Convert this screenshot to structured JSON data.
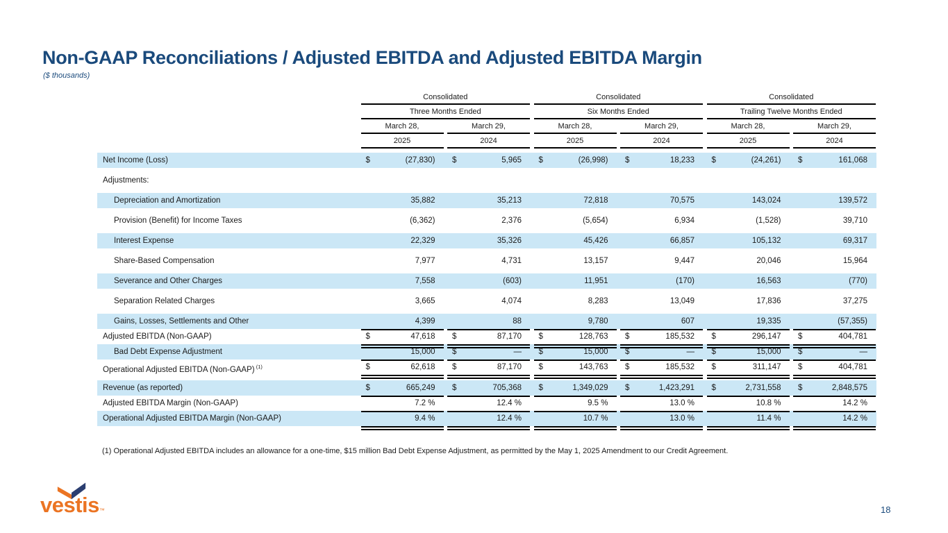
{
  "slide": {
    "title": "Non-GAAP Reconciliations / Adjusted EBITDA and Adjusted EBITDA Margin",
    "subtitle": "($ thousands)",
    "footnote": "(1) Operational Adjusted EBITDA includes an allowance for a one-time, $15 million Bad Debt Expense Adjustment, as permitted by the May 1, 2025 Amendment to our Credit Agreement.",
    "page_number": "18",
    "logo": {
      "wordmark": "vestis",
      "tm": "™"
    }
  },
  "colors": {
    "title_navy": "#1A4A7C",
    "row_highlight_blue": "#CBE7F6",
    "rule_black": "#000000",
    "logo_orange": "#EB7423",
    "logo_navy": "#2B3E70"
  },
  "chart_data": {
    "type": "table",
    "column_groups": [
      {
        "top": "Consolidated",
        "period": "Three Months Ended",
        "columns": [
          {
            "date": "March 28,",
            "year": "2025"
          },
          {
            "date": "March 29,",
            "year": "2024"
          }
        ]
      },
      {
        "top": "Consolidated",
        "period": "Six Months Ended",
        "columns": [
          {
            "date": "March 28,",
            "year": "2025"
          },
          {
            "date": "March 29,",
            "year": "2024"
          }
        ]
      },
      {
        "top": "Consolidated",
        "period": "Trailing Twelve Months Ended",
        "columns": [
          {
            "date": "March 28,",
            "year": "2025"
          },
          {
            "date": "March 29,",
            "year": "2024"
          }
        ]
      }
    ],
    "rows": [
      {
        "label": "Net Income (Loss)",
        "indent": 0,
        "highlight": true,
        "gap_after": 7,
        "rule": null,
        "cells": [
          {
            "p": "$",
            "v": "(27,830)"
          },
          {
            "p": "$",
            "v": "5,965"
          },
          {
            "p": "$",
            "v": "(26,998)"
          },
          {
            "p": "$",
            "v": "18,233"
          },
          {
            "p": "$",
            "v": "(24,261)"
          },
          {
            "p": "$",
            "v": "161,068"
          }
        ]
      },
      {
        "label": "Adjustments:",
        "indent": 0,
        "highlight": false,
        "gap_after": 7,
        "rule": null,
        "cells": []
      },
      {
        "label": "Depreciation and Amortization",
        "indent": 1,
        "highlight": true,
        "gap_after": 7,
        "rule": null,
        "cells": [
          {
            "p": "",
            "v": "35,882"
          },
          {
            "p": "",
            "v": "35,213"
          },
          {
            "p": "",
            "v": "72,818"
          },
          {
            "p": "",
            "v": "70,575"
          },
          {
            "p": "",
            "v": "143,024"
          },
          {
            "p": "",
            "v": "139,572"
          }
        ]
      },
      {
        "label": "Provision (Benefit) for Income Taxes",
        "indent": 1,
        "highlight": false,
        "gap_after": 7,
        "rule": null,
        "cells": [
          {
            "p": "",
            "v": "(6,362)"
          },
          {
            "p": "",
            "v": "2,376"
          },
          {
            "p": "",
            "v": "(5,654)"
          },
          {
            "p": "",
            "v": "6,934"
          },
          {
            "p": "",
            "v": "(1,528)"
          },
          {
            "p": "",
            "v": "39,710"
          }
        ]
      },
      {
        "label": "Interest Expense",
        "indent": 1,
        "highlight": true,
        "gap_after": 7,
        "rule": null,
        "cells": [
          {
            "p": "",
            "v": "22,329"
          },
          {
            "p": "",
            "v": "35,326"
          },
          {
            "p": "",
            "v": "45,426"
          },
          {
            "p": "",
            "v": "66,857"
          },
          {
            "p": "",
            "v": "105,132"
          },
          {
            "p": "",
            "v": "69,317"
          }
        ]
      },
      {
        "label": "Share-Based Compensation",
        "indent": 1,
        "highlight": false,
        "gap_after": 7,
        "rule": null,
        "cells": [
          {
            "p": "",
            "v": "7,977"
          },
          {
            "p": "",
            "v": "4,731"
          },
          {
            "p": "",
            "v": "13,157"
          },
          {
            "p": "",
            "v": "9,447"
          },
          {
            "p": "",
            "v": "20,046"
          },
          {
            "p": "",
            "v": "15,964"
          }
        ]
      },
      {
        "label": "Severance and Other Charges",
        "indent": 1,
        "highlight": true,
        "gap_after": 7,
        "rule": null,
        "cells": [
          {
            "p": "",
            "v": "7,558"
          },
          {
            "p": "",
            "v": "(603)"
          },
          {
            "p": "",
            "v": "11,951"
          },
          {
            "p": "",
            "v": "(170)"
          },
          {
            "p": "",
            "v": "16,563"
          },
          {
            "p": "",
            "v": "(770)"
          }
        ]
      },
      {
        "label": "Separation Related Charges",
        "indent": 1,
        "highlight": false,
        "gap_after": 7,
        "rule": null,
        "cells": [
          {
            "p": "",
            "v": "3,665"
          },
          {
            "p": "",
            "v": "4,074"
          },
          {
            "p": "",
            "v": "8,283"
          },
          {
            "p": "",
            "v": "13,049"
          },
          {
            "p": "",
            "v": "17,836"
          },
          {
            "p": "",
            "v": "37,275"
          }
        ]
      },
      {
        "label": "Gains, Losses, Settlements and Other",
        "indent": 1,
        "highlight": true,
        "gap_after": 0,
        "rule": "single",
        "cells": [
          {
            "p": "",
            "v": "4,399"
          },
          {
            "p": "",
            "v": "88"
          },
          {
            "p": "",
            "v": "9,780"
          },
          {
            "p": "",
            "v": "607"
          },
          {
            "p": "",
            "v": "19,335"
          },
          {
            "p": "",
            "v": "(57,355)"
          }
        ]
      },
      {
        "label": "Adjusted EBITDA (Non-GAAP)",
        "indent": 0,
        "highlight": false,
        "gap_after": 0,
        "rule": "double",
        "cells": [
          {
            "p": "$",
            "v": "47,618"
          },
          {
            "p": "$",
            "v": "87,170"
          },
          {
            "p": "$",
            "v": "128,763"
          },
          {
            "p": "$",
            "v": "185,532"
          },
          {
            "p": "$",
            "v": "296,147"
          },
          {
            "p": "$",
            "v": "404,781"
          }
        ]
      },
      {
        "label": "Bad Debt Expense Adjustment",
        "indent": 1,
        "highlight": true,
        "gap_after": 0,
        "rule": "single",
        "cells": [
          {
            "p": "",
            "v": "15,000"
          },
          {
            "p": "$",
            "v": "—"
          },
          {
            "p": "$",
            "v": "15,000"
          },
          {
            "p": "$",
            "v": "—"
          },
          {
            "p": "$",
            "v": "15,000"
          },
          {
            "p": "$",
            "v": "—"
          }
        ]
      },
      {
        "label": "Operational Adjusted EBITDA (Non-GAAP)",
        "label_sup": "(1)",
        "indent": 0,
        "highlight": false,
        "gap_after": 8,
        "rule": "double",
        "cells": [
          {
            "p": "$",
            "v": "62,618"
          },
          {
            "p": "$",
            "v": "87,170"
          },
          {
            "p": "$",
            "v": "143,763"
          },
          {
            "p": "$",
            "v": "185,532"
          },
          {
            "p": "$",
            "v": "311,147"
          },
          {
            "p": "$",
            "v": "404,781"
          }
        ]
      },
      {
        "label": "Revenue (as reported)",
        "indent": 0,
        "highlight": true,
        "gap_after": 0,
        "rule": "single",
        "cells": [
          {
            "p": "$",
            "v": "665,249"
          },
          {
            "p": "$",
            "v": "705,368"
          },
          {
            "p": "$",
            "v": "1,349,029"
          },
          {
            "p": "$",
            "v": "1,423,291"
          },
          {
            "p": "$",
            "v": "2,731,558"
          },
          {
            "p": "$",
            "v": "2,848,575"
          }
        ]
      },
      {
        "label": "Adjusted EBITDA Margin (Non-GAAP)",
        "indent": 0,
        "highlight": false,
        "gap_after": 0,
        "rule": "single",
        "cells": [
          {
            "p": "",
            "v": "7.2 %"
          },
          {
            "p": "",
            "v": "12.4 %"
          },
          {
            "p": "",
            "v": "9.5 %"
          },
          {
            "p": "",
            "v": "13.0 %"
          },
          {
            "p": "",
            "v": "10.8 %"
          },
          {
            "p": "",
            "v": "14.2 %"
          }
        ]
      },
      {
        "label": "Operational Adjusted EBITDA Margin (Non-GAAP)",
        "indent": 0,
        "highlight": true,
        "gap_after": 0,
        "rule": "double",
        "cells": [
          {
            "p": "",
            "v": "9.4 %"
          },
          {
            "p": "",
            "v": "12.4 %"
          },
          {
            "p": "",
            "v": "10.7 %"
          },
          {
            "p": "",
            "v": "13.0 %"
          },
          {
            "p": "",
            "v": "11.4 %"
          },
          {
            "p": "",
            "v": "14.2 %"
          }
        ]
      }
    ]
  }
}
